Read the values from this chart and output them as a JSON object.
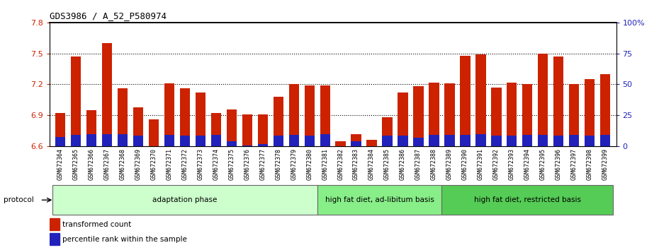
{
  "title": "GDS3986 / A_52_P580974",
  "samples": [
    "GSM672364",
    "GSM672365",
    "GSM672366",
    "GSM672367",
    "GSM672368",
    "GSM672369",
    "GSM672370",
    "GSM672371",
    "GSM672372",
    "GSM672373",
    "GSM672374",
    "GSM672375",
    "GSM672376",
    "GSM672377",
    "GSM672378",
    "GSM672379",
    "GSM672380",
    "GSM672381",
    "GSM672382",
    "GSM672383",
    "GSM672384",
    "GSM672385",
    "GSM672386",
    "GSM672387",
    "GSM672388",
    "GSM672389",
    "GSM672390",
    "GSM672391",
    "GSM672392",
    "GSM672393",
    "GSM672394",
    "GSM672395",
    "GSM672396",
    "GSM672397",
    "GSM672398",
    "GSM672399"
  ],
  "red_values": [
    6.92,
    7.47,
    6.95,
    7.6,
    7.16,
    6.98,
    6.86,
    7.21,
    7.16,
    7.12,
    6.92,
    6.96,
    6.91,
    6.91,
    7.08,
    7.2,
    7.19,
    7.19,
    6.65,
    6.72,
    6.66,
    6.88,
    7.12,
    7.18,
    7.22,
    7.21,
    7.48,
    7.49,
    7.17,
    7.22,
    7.2,
    7.5,
    7.47,
    7.2,
    7.25,
    7.3
  ],
  "blue_values": [
    6.69,
    6.71,
    6.72,
    6.72,
    6.72,
    6.7,
    6.6,
    6.71,
    6.7,
    6.7,
    6.71,
    6.65,
    6.61,
    6.62,
    6.7,
    6.71,
    6.7,
    6.72,
    6.6,
    6.65,
    6.6,
    6.7,
    6.7,
    6.68,
    6.71,
    6.71,
    6.71,
    6.72,
    6.7,
    6.7,
    6.71,
    6.71,
    6.7,
    6.71,
    6.7,
    6.71
  ],
  "groups": [
    {
      "label": "adaptation phase",
      "start": 0,
      "end": 17,
      "color": "#ccffcc"
    },
    {
      "label": "high fat diet, ad-libitum basis",
      "start": 17,
      "end": 25,
      "color": "#88ee88"
    },
    {
      "label": "high fat diet, restricted basis",
      "start": 25,
      "end": 36,
      "color": "#55cc55"
    }
  ],
  "ymin": 6.6,
  "ymax": 7.8,
  "yticks": [
    6.6,
    6.9,
    7.2,
    7.5,
    7.8
  ],
  "right_yticks": [
    0,
    25,
    50,
    75,
    100
  ],
  "right_ylabels": [
    "0",
    "25",
    "50",
    "75",
    "100%"
  ],
  "bar_color_red": "#cc2200",
  "bar_color_blue": "#2222bb",
  "bar_width": 0.65,
  "tick_label_color_left": "#cc2200",
  "tick_label_color_right": "#2222bb",
  "legend_red": "transformed count",
  "legend_blue": "percentile rank within the sample",
  "protocol_label": "protocol"
}
